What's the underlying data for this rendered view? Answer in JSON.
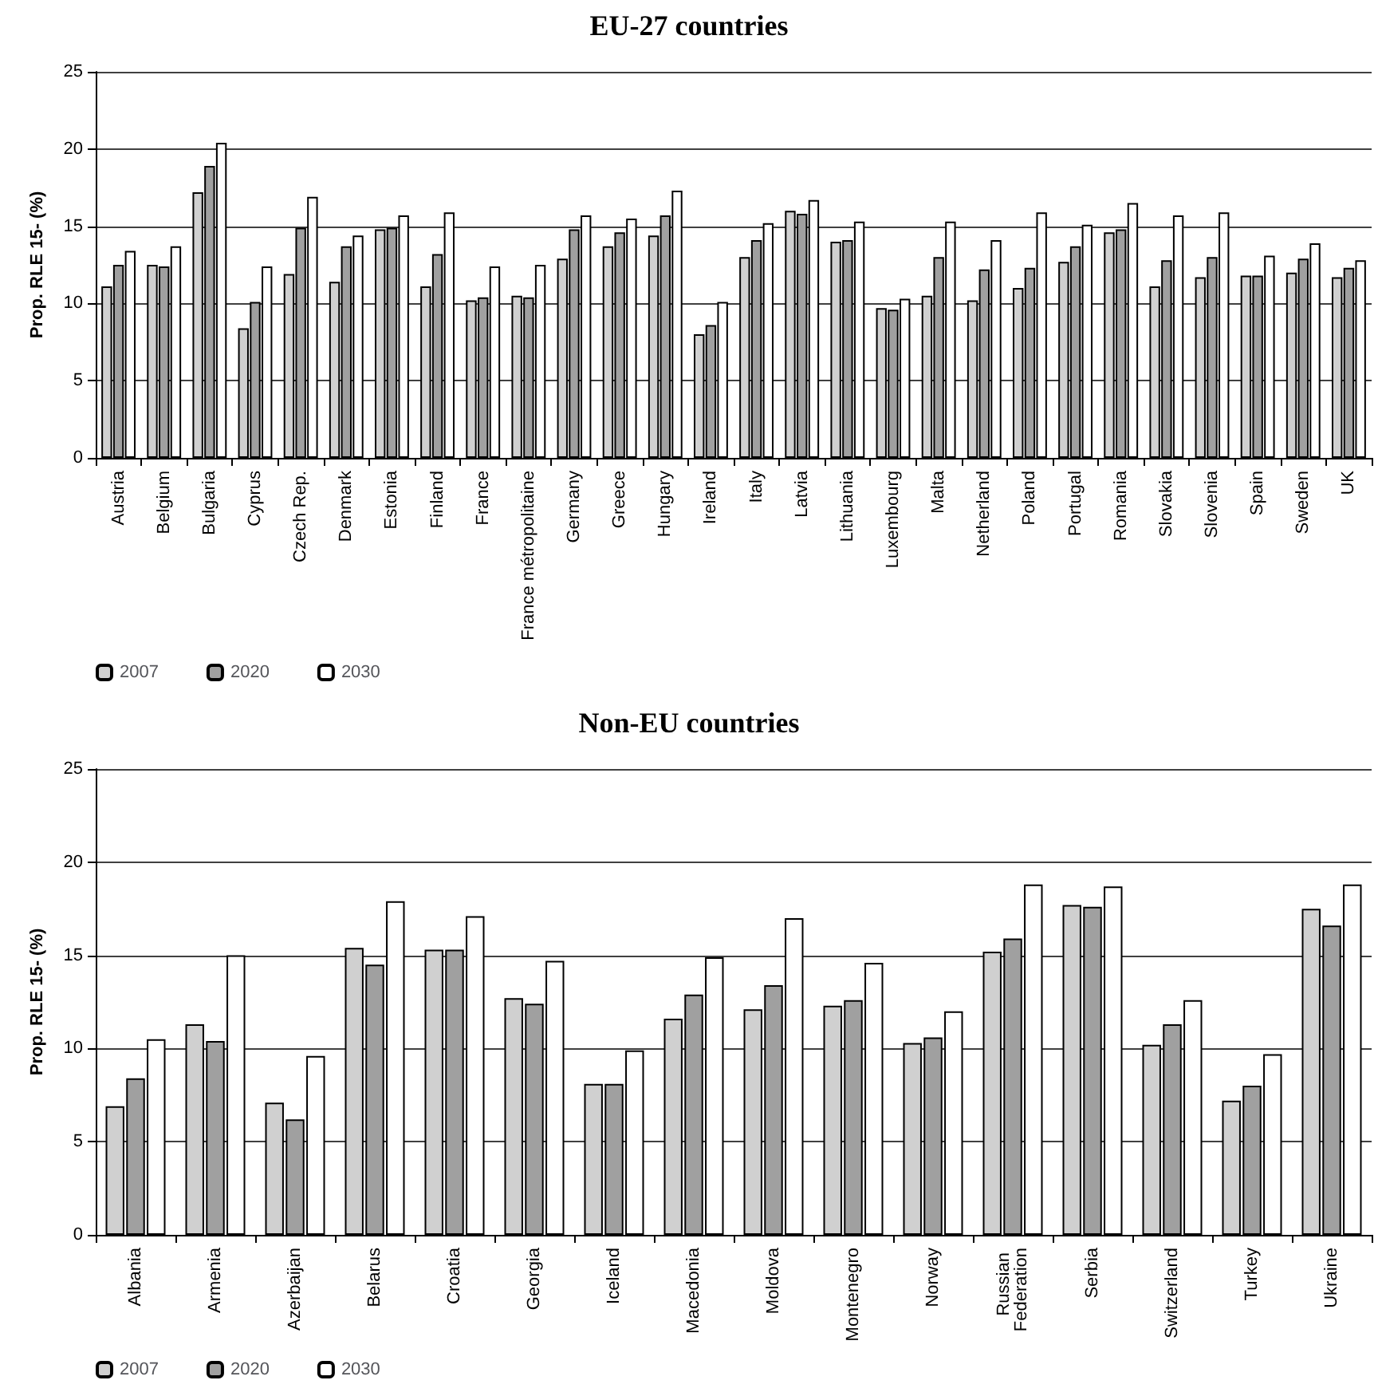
{
  "chart_data": [
    {
      "type": "bar",
      "title": "EU-27 countries",
      "ylabel": "Prop. RLE 15- (%)",
      "categories": [
        "Austria",
        "Belgium",
        "Bulgaria",
        "Cyprus",
        "Czech Rep.",
        "Denmark",
        "Estonia",
        "Finland",
        "France",
        "France métropolitaine",
        "Germany",
        "Greece",
        "Hungary",
        "Ireland",
        "Italy",
        "Latvia",
        "Lithuania",
        "Luxembourg",
        "Malta",
        "Netherland",
        "Poland",
        "Portugal",
        "Romania",
        "Slovakia",
        "Slovenia",
        "Spain",
        "Sweden",
        "UK"
      ],
      "series": [
        {
          "name": "2007",
          "color": "#d0d0d0",
          "values": [
            11.1,
            12.5,
            17.2,
            8.4,
            11.9,
            11.4,
            14.8,
            11.1,
            10.2,
            10.5,
            12.9,
            13.7,
            14.4,
            8.0,
            13.0,
            16.0,
            14.0,
            9.7,
            10.5,
            10.2,
            11.0,
            12.7,
            14.6,
            11.1,
            11.7,
            11.8,
            12.0,
            11.7
          ]
        },
        {
          "name": "2020",
          "color": "#a0a0a0",
          "values": [
            12.5,
            12.4,
            18.9,
            10.1,
            14.9,
            13.7,
            14.9,
            13.2,
            10.4,
            10.4,
            14.8,
            14.6,
            15.7,
            8.6,
            14.1,
            15.8,
            14.1,
            9.6,
            13.0,
            12.2,
            12.3,
            13.7,
            14.8,
            12.8,
            13.0,
            11.8,
            12.9,
            12.3
          ]
        },
        {
          "name": "2030",
          "color": "#ffffff",
          "values": [
            13.4,
            13.7,
            20.4,
            12.4,
            16.9,
            14.4,
            15.7,
            15.9,
            12.4,
            12.5,
            15.7,
            15.5,
            17.3,
            10.1,
            15.2,
            16.7,
            15.3,
            10.3,
            15.3,
            14.1,
            15.9,
            15.1,
            16.5,
            15.7,
            15.9,
            13.1,
            13.9,
            12.8
          ]
        }
      ],
      "ylim": [
        0,
        25
      ],
      "yticks": [
        0,
        5,
        10,
        15,
        20,
        25
      ],
      "grid": "y",
      "legend": "bottom left"
    },
    {
      "type": "bar",
      "title": "Non-EU countries",
      "ylabel": "Prop. RLE 15- (%)",
      "categories": [
        "Albania",
        "Armenia",
        "Azerbaijan",
        "Belarus",
        "Croatia",
        "Georgia",
        "Iceland",
        "Macedonia",
        "Moldova",
        "Montenegro",
        "Norway",
        "Russian Federation",
        "Serbia",
        "Switzerland",
        "Turkey",
        "Ukraine"
      ],
      "series": [
        {
          "name": "2007",
          "color": "#d0d0d0",
          "values": [
            6.9,
            11.3,
            7.1,
            15.4,
            15.3,
            12.7,
            8.1,
            11.6,
            12.1,
            12.3,
            10.3,
            15.2,
            17.7,
            10.2,
            7.2,
            17.5
          ]
        },
        {
          "name": "2020",
          "color": "#a0a0a0",
          "values": [
            8.4,
            10.4,
            6.2,
            14.5,
            15.3,
            12.4,
            8.1,
            12.9,
            13.4,
            12.6,
            10.6,
            15.9,
            17.6,
            11.3,
            8.0,
            16.6
          ]
        },
        {
          "name": "2030",
          "color": "#ffffff",
          "values": [
            10.5,
            15.0,
            9.6,
            17.9,
            17.1,
            14.7,
            9.9,
            14.9,
            17.0,
            14.6,
            12.0,
            18.8,
            18.7,
            12.6,
            9.7,
            18.8
          ]
        }
      ],
      "ylim": [
        0,
        25
      ],
      "yticks": [
        0,
        5,
        10,
        15,
        20,
        25
      ],
      "grid": "y",
      "legend": "bottom left"
    }
  ]
}
